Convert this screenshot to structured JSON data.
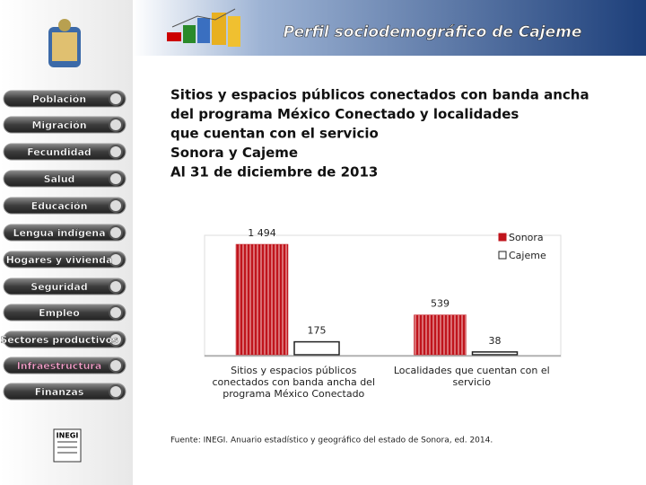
{
  "header": {
    "title": "Perfil sociodemográfico de Cajeme"
  },
  "nav": {
    "items": [
      "Población",
      "Migración",
      "Fecundidad",
      "Salud",
      "Educación",
      "Lengua indígena",
      "Hogares y vivienda",
      "Seguridad",
      "Empleo",
      "Sectores productivos",
      "Infraestructura",
      "Finanzas"
    ],
    "active": 10,
    "logo": "INEGI"
  },
  "chart_data": {
    "type": "bar",
    "title": [
      "Sitios y espacios públicos conectados con banda ancha",
      "del programa México Conectado y localidades",
      "que cuentan con el servicio",
      "Sonora y Cajeme",
      "Al 31 de diciembre de 2013"
    ],
    "categories": [
      "Sitios y espacios públicos conectados con banda ancha del programa México Conectado",
      "Localidades que cuentan con el servicio"
    ],
    "series": [
      {
        "name": "Sonora",
        "color": "#c0141c",
        "values": [
          1494,
          539
        ],
        "value_labels": [
          "1 494",
          "539"
        ]
      },
      {
        "name": "Cajeme",
        "color": "#ffffff",
        "values": [
          175,
          38
        ]
      }
    ],
    "legend": "upper right"
  },
  "source": "Fuente: INEGI. Anuario estadístico y geográfico del estado de Sonora, ed. 2014."
}
